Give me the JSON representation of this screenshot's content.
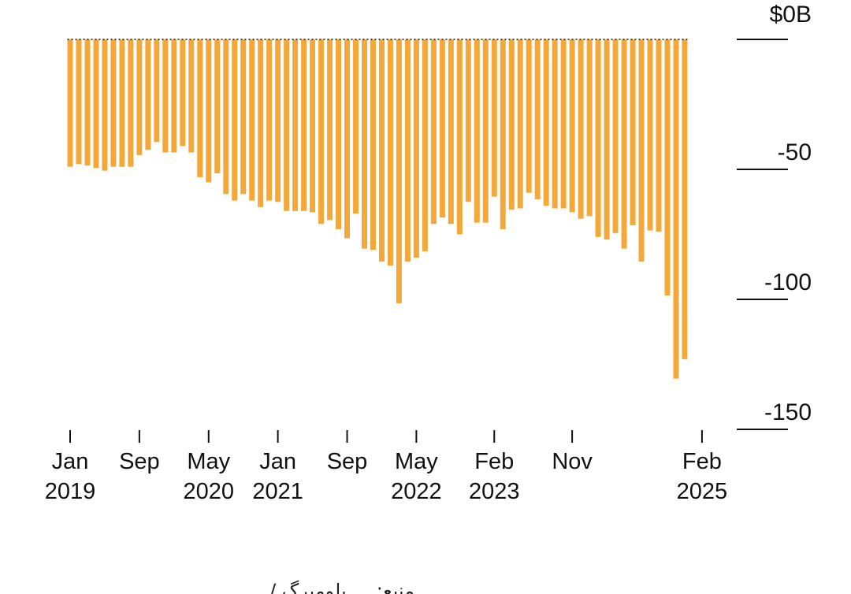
{
  "chart_data": {
    "type": "bar",
    "title": "",
    "xlabel": "",
    "ylabel": "",
    "ylim": [
      -150,
      0
    ],
    "y_ticks": [
      {
        "value": 0,
        "label": "$0B"
      },
      {
        "value": -50,
        "label": "-50"
      },
      {
        "value": -100,
        "label": "-100"
      },
      {
        "value": -150,
        "label": "-150"
      }
    ],
    "x_ticks": [
      {
        "index": 0,
        "line1": "Jan",
        "line2": "2019"
      },
      {
        "index": 8,
        "line1": "Sep",
        "line2": ""
      },
      {
        "index": 16,
        "line1": "May",
        "line2": "2020"
      },
      {
        "index": 24,
        "line1": "Jan",
        "line2": "2021"
      },
      {
        "index": 32,
        "line1": "Sep",
        "line2": ""
      },
      {
        "index": 40,
        "line1": "May",
        "line2": "2022"
      },
      {
        "index": 49,
        "line1": "Feb",
        "line2": "2023"
      },
      {
        "index": 58,
        "line1": "Nov",
        "line2": ""
      },
      {
        "index": 73,
        "line1": "Feb",
        "line2": "2025"
      }
    ],
    "bar_color": "#F5A83A",
    "values": [
      -49,
      -48,
      -48.5,
      -49.5,
      -50.5,
      -49,
      -49,
      -49,
      -44.5,
      -42.5,
      -39.5,
      -43.5,
      -43.5,
      -41,
      -43.5,
      -53,
      -55,
      -51.5,
      -59.5,
      -62,
      -59.5,
      -62,
      -64.5,
      -62,
      -62.5,
      -66,
      -66,
      -66,
      -66.5,
      -71,
      -69.5,
      -73,
      -76.5,
      -67,
      -80.5,
      -81,
      -85.5,
      -87,
      -101.5,
      -85.5,
      -84,
      -81.5,
      -71,
      -68.5,
      -71,
      -75,
      -62.5,
      -70.5,
      -70.5,
      -60.5,
      -73,
      -65.5,
      -65,
      -59,
      -61.5,
      -64,
      -65,
      -65,
      -66.5,
      -69,
      -68,
      -76,
      -77,
      -74.5,
      -80.5,
      -71.5,
      -85.5,
      -73.5,
      -74,
      -98.5,
      -130.5,
      -123
    ]
  },
  "source_note": "منبع: ... بلومبرگ / ..."
}
